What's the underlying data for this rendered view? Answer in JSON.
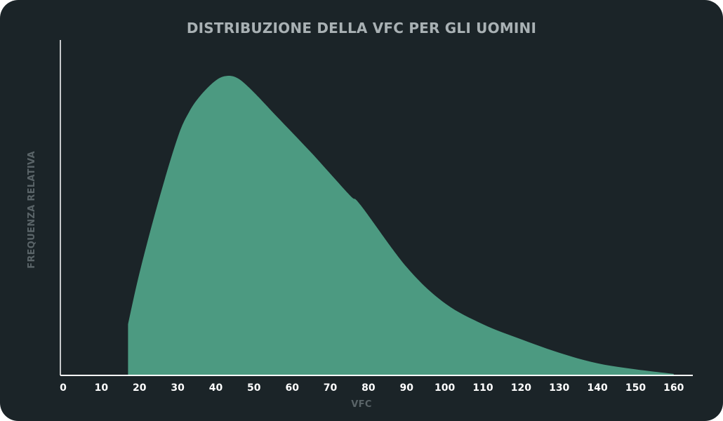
{
  "chart_data": {
    "type": "area",
    "title": "DISTRIBUZIONE DELLA VFC PER GLI UOMINI",
    "xlabel": "VFC",
    "ylabel": "FREQUENZA RELATIVA",
    "xlim": [
      0,
      165
    ],
    "ylim": [
      0,
      100
    ],
    "x_ticks": [
      "0",
      "10",
      "20",
      "30",
      "40",
      "50",
      "60",
      "70",
      "80",
      "90",
      "100",
      "110",
      "120",
      "130",
      "140",
      "150",
      "160"
    ],
    "grid": false,
    "legend": "none",
    "color": "#4c9a81",
    "series": [
      {
        "x": [
          17,
          17,
          20,
          25,
          30,
          33,
          36,
          40,
          43,
          46,
          50,
          56,
          65,
          75,
          78,
          90,
          100,
          110,
          120,
          130,
          140,
          150,
          160,
          165
        ],
        "y": [
          0,
          17,
          34,
          58,
          79,
          87.5,
          93,
          98,
          99.5,
          98.5,
          94,
          86,
          74,
          60,
          56.5,
          36,
          24,
          17,
          12,
          7.5,
          4,
          2,
          0.5,
          0
        ]
      }
    ]
  }
}
